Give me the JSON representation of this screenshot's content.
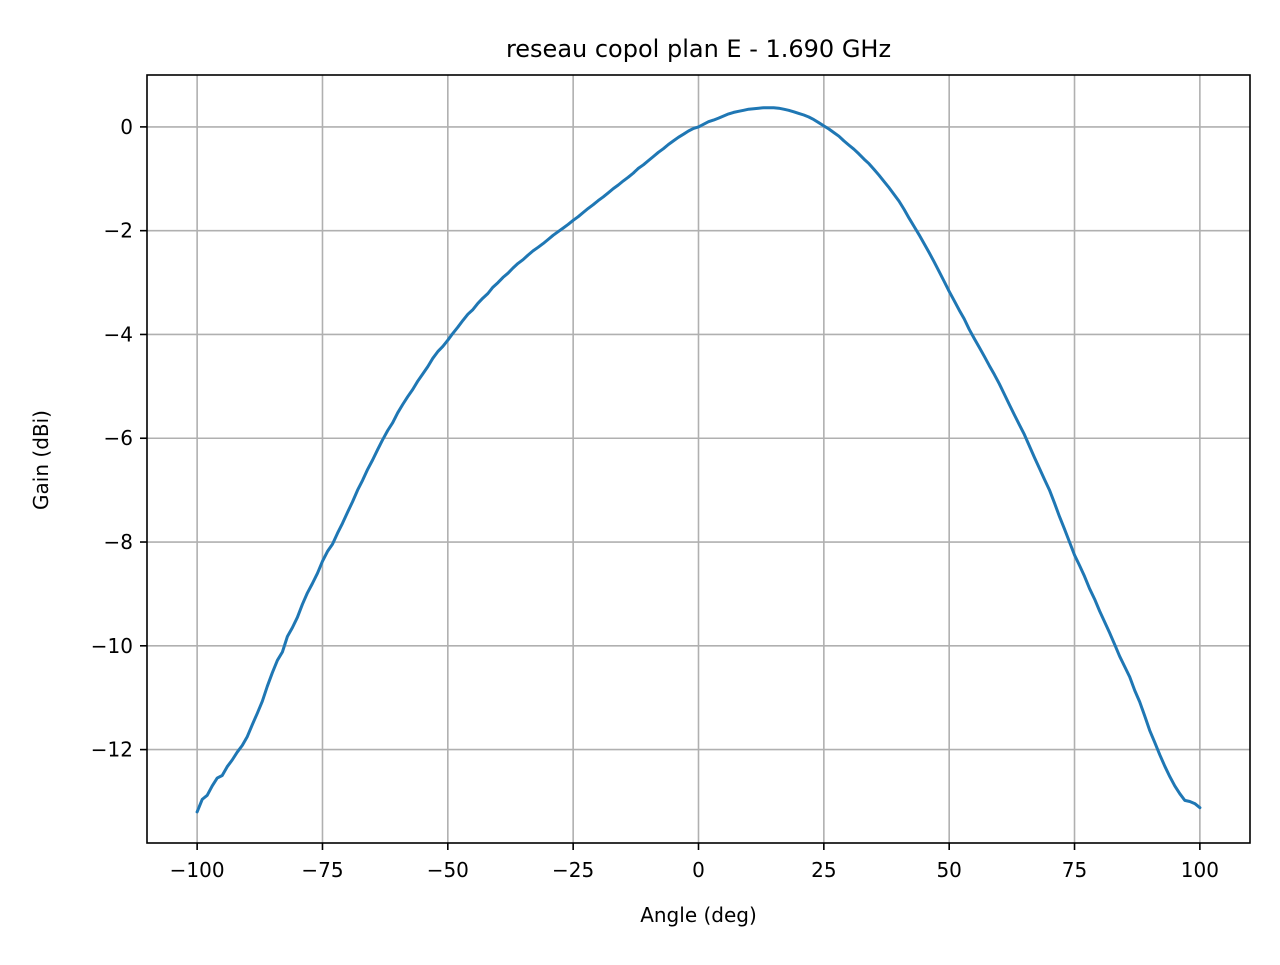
{
  "chart_data": {
    "type": "line",
    "title": "reseau copol plan E - 1.690 GHz",
    "xlabel": "Angle (deg)",
    "ylabel": "Gain (dBi)",
    "xlim": [
      -110,
      110
    ],
    "ylim": [
      -13.8,
      1.0
    ],
    "grid": true,
    "x_ticks": [
      -100,
      -75,
      -50,
      -25,
      0,
      25,
      50,
      75,
      100
    ],
    "x_tick_labels": [
      "−100",
      "−75",
      "−50",
      "−25",
      "0",
      "25",
      "50",
      "75",
      "100"
    ],
    "y_ticks": [
      0,
      -2,
      -4,
      -6,
      -8,
      -10,
      -12
    ],
    "y_tick_labels": [
      "0",
      "−2",
      "−4",
      "−6",
      "−8",
      "−10",
      "−12"
    ],
    "series": [
      {
        "color": "#1f77b4",
        "x": [
          -100,
          -99,
          -98,
          -97,
          -96,
          -95,
          -94,
          -93,
          -92,
          -91,
          -90,
          -89,
          -88,
          -87,
          -86,
          -85,
          -84,
          -83,
          -82,
          -81,
          -80,
          -79,
          -78,
          -77,
          -76,
          -75,
          -74,
          -73,
          -72,
          -71,
          -70,
          -69,
          -68,
          -67,
          -66,
          -65,
          -64,
          -63,
          -62,
          -61,
          -60,
          -59,
          -58,
          -57,
          -56,
          -55,
          -54,
          -53,
          -52,
          -51,
          -50,
          -49,
          -48,
          -47,
          -46,
          -45,
          -44,
          -43,
          -42,
          -41,
          -40,
          -39,
          -38,
          -37,
          -36,
          -35,
          -34,
          -33,
          -32,
          -31,
          -30,
          -29,
          -28,
          -27,
          -26,
          -25,
          -24,
          -23,
          -22,
          -21,
          -20,
          -19,
          -18,
          -17,
          -16,
          -15,
          -14,
          -13,
          -12,
          -11,
          -10,
          -9,
          -8,
          -7,
          -6,
          -5,
          -4,
          -3,
          -2,
          -1,
          0,
          1,
          2,
          3,
          4,
          5,
          6,
          7,
          8,
          9,
          10,
          11,
          12,
          13,
          14,
          15,
          16,
          17,
          18,
          19,
          20,
          21,
          22,
          23,
          24,
          25,
          26,
          27,
          28,
          29,
          30,
          31,
          32,
          33,
          34,
          35,
          36,
          37,
          38,
          39,
          40,
          41,
          42,
          43,
          44,
          45,
          46,
          47,
          48,
          49,
          50,
          51,
          52,
          53,
          54,
          55,
          56,
          57,
          58,
          59,
          60,
          61,
          62,
          63,
          64,
          65,
          66,
          67,
          68,
          69,
          70,
          71,
          72,
          73,
          74,
          75,
          76,
          77,
          78,
          79,
          80,
          81,
          82,
          83,
          84,
          85,
          86,
          87,
          88,
          89,
          90,
          91,
          92,
          93,
          94,
          95,
          96,
          97,
          98,
          99,
          100
        ],
        "y": [
          -13.2,
          -12.96,
          -12.88,
          -12.7,
          -12.55,
          -12.5,
          -12.33,
          -12.2,
          -12.05,
          -11.92,
          -11.75,
          -11.52,
          -11.3,
          -11.07,
          -10.78,
          -10.52,
          -10.28,
          -10.12,
          -9.82,
          -9.65,
          -9.45,
          -9.2,
          -8.98,
          -8.8,
          -8.6,
          -8.37,
          -8.18,
          -8.04,
          -7.83,
          -7.64,
          -7.43,
          -7.22,
          -7.0,
          -6.81,
          -6.6,
          -6.42,
          -6.22,
          -6.03,
          -5.85,
          -5.7,
          -5.51,
          -5.35,
          -5.2,
          -5.06,
          -4.9,
          -4.76,
          -4.62,
          -4.46,
          -4.33,
          -4.23,
          -4.11,
          -3.98,
          -3.86,
          -3.73,
          -3.61,
          -3.52,
          -3.4,
          -3.3,
          -3.21,
          -3.09,
          -3.0,
          -2.9,
          -2.82,
          -2.72,
          -2.63,
          -2.56,
          -2.47,
          -2.39,
          -2.32,
          -2.25,
          -2.17,
          -2.09,
          -2.02,
          -1.95,
          -1.88,
          -1.8,
          -1.73,
          -1.65,
          -1.57,
          -1.5,
          -1.42,
          -1.35,
          -1.27,
          -1.19,
          -1.12,
          -1.04,
          -0.97,
          -0.89,
          -0.8,
          -0.73,
          -0.65,
          -0.57,
          -0.49,
          -0.42,
          -0.34,
          -0.27,
          -0.2,
          -0.14,
          -0.08,
          -0.03,
          0.0,
          0.05,
          0.1,
          0.13,
          0.17,
          0.21,
          0.25,
          0.28,
          0.3,
          0.32,
          0.34,
          0.35,
          0.36,
          0.37,
          0.37,
          0.37,
          0.36,
          0.34,
          0.32,
          0.29,
          0.26,
          0.23,
          0.19,
          0.14,
          0.08,
          0.02,
          -0.04,
          -0.11,
          -0.18,
          -0.27,
          -0.35,
          -0.43,
          -0.52,
          -0.62,
          -0.71,
          -0.82,
          -0.93,
          -1.05,
          -1.17,
          -1.3,
          -1.43,
          -1.59,
          -1.76,
          -1.92,
          -2.08,
          -2.25,
          -2.42,
          -2.6,
          -2.79,
          -2.98,
          -3.17,
          -3.35,
          -3.53,
          -3.7,
          -3.9,
          -4.08,
          -4.25,
          -4.42,
          -4.6,
          -4.77,
          -4.95,
          -5.15,
          -5.35,
          -5.55,
          -5.74,
          -5.93,
          -6.15,
          -6.37,
          -6.58,
          -6.79,
          -7.0,
          -7.25,
          -7.51,
          -7.75,
          -8.0,
          -8.25,
          -8.45,
          -8.66,
          -8.9,
          -9.1,
          -9.33,
          -9.54,
          -9.75,
          -9.97,
          -10.2,
          -10.4,
          -10.6,
          -10.86,
          -11.08,
          -11.35,
          -11.63,
          -11.86,
          -12.1,
          -12.32,
          -12.52,
          -12.7,
          -12.85,
          -12.98,
          -13.0,
          -13.04,
          -13.12
        ]
      }
    ]
  }
}
